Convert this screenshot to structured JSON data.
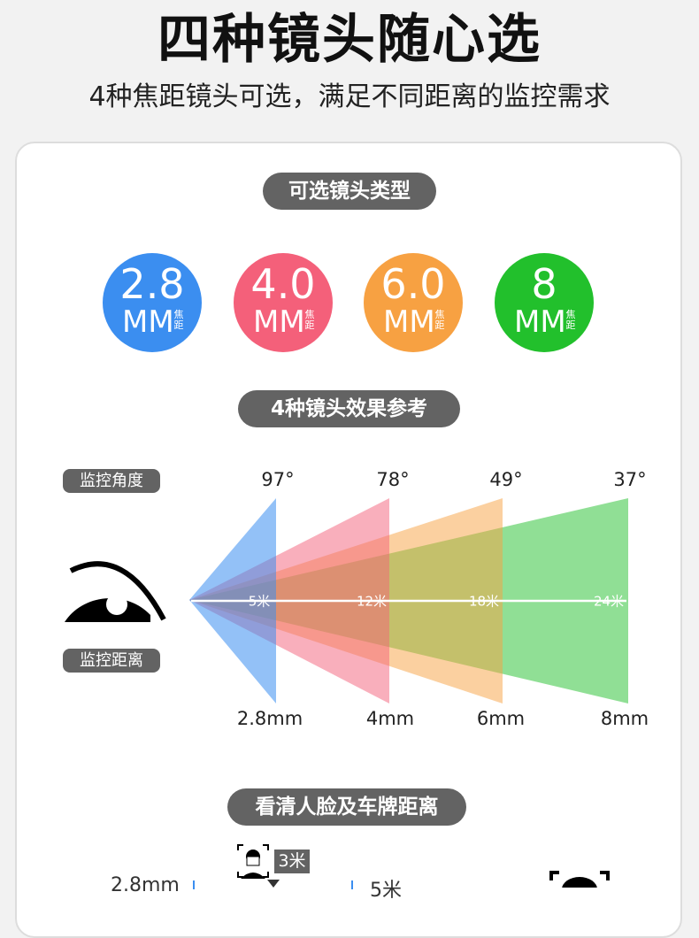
{
  "header": {
    "title": "四种镜头随心选",
    "subtitle": "4种焦距镜头可选，满足不同距离的监控需求"
  },
  "section1": {
    "pill": "可选镜头类型",
    "lenses": [
      {
        "value": "2.8",
        "unit": "MM",
        "note": "焦距",
        "color": "#3b8ef0"
      },
      {
        "value": "4.0",
        "unit": "MM",
        "note": "焦距",
        "color": "#f4607a"
      },
      {
        "value": "6.0",
        "unit": "MM",
        "note": "焦距",
        "color": "#f7a142"
      },
      {
        "value": "8",
        "unit": "MM",
        "note": "焦距",
        "color": "#22c02c"
      }
    ]
  },
  "section2": {
    "pill": "4种镜头效果参考",
    "angle_label": "监控角度",
    "distance_label": "监控距离",
    "angles": [
      "97°",
      "78°",
      "49°",
      "37°"
    ],
    "focals": [
      "2.8mm",
      "4mm",
      "6mm",
      "8mm"
    ],
    "distances": [
      "5米",
      "12米",
      "18米",
      "24米"
    ]
  },
  "section3": {
    "pill": "看清人脸及车牌距离",
    "face_distance": "3米",
    "row_focal": "2.8mm",
    "row_distance": "5米"
  }
}
